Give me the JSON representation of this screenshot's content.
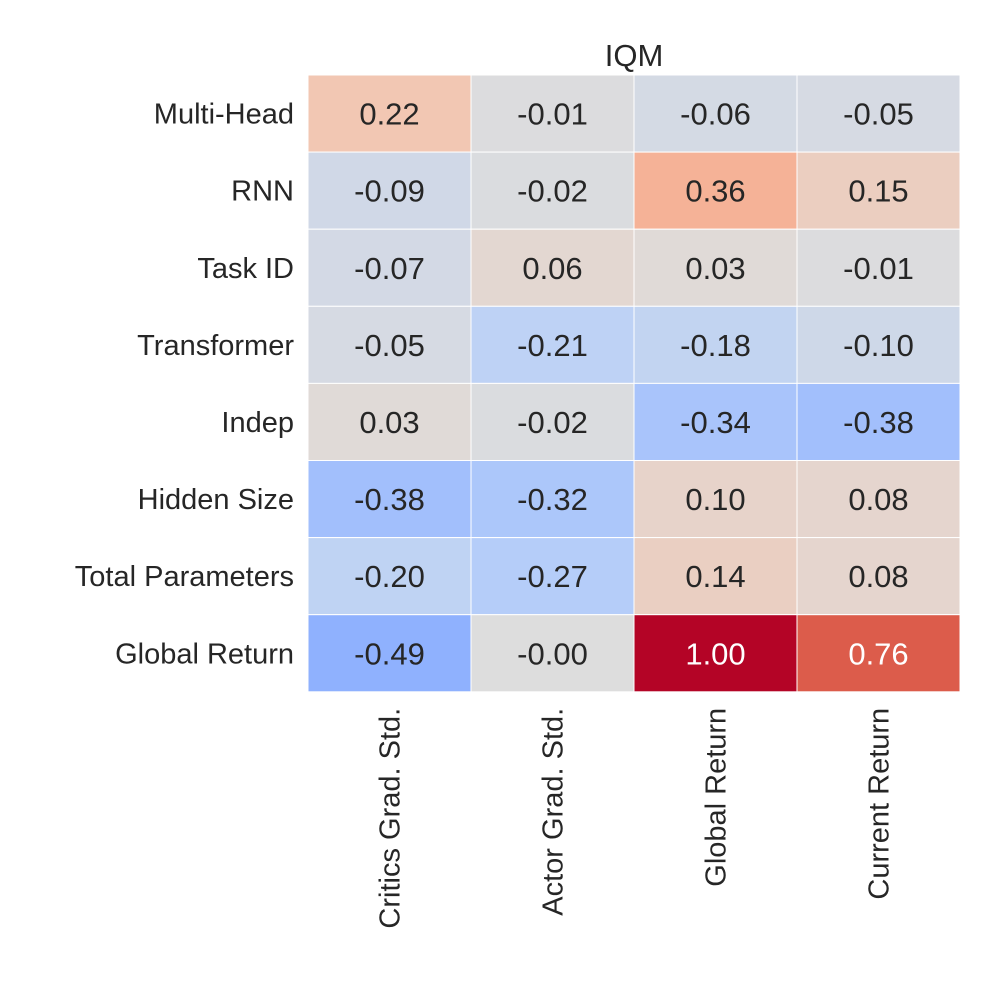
{
  "chart_data": {
    "type": "heatmap",
    "title": "IQM",
    "xlabel": "",
    "ylabel": "",
    "rows": [
      "Multi-Head",
      "RNN",
      "Task ID",
      "Transformer",
      "Indep",
      "Hidden Size",
      "Total Parameters",
      "Global Return"
    ],
    "columns": [
      "Critics Grad. Std.",
      "Actor Grad. Std.",
      "Global Return",
      "Current Return"
    ],
    "values": [
      [
        0.22,
        -0.01,
        -0.06,
        -0.05
      ],
      [
        -0.09,
        -0.02,
        0.36,
        0.15
      ],
      [
        -0.07,
        0.06,
        0.03,
        -0.01
      ],
      [
        -0.05,
        -0.21,
        -0.18,
        -0.1
      ],
      [
        0.03,
        -0.02,
        -0.34,
        -0.38
      ],
      [
        -0.38,
        -0.32,
        0.1,
        0.08
      ],
      [
        -0.2,
        -0.27,
        0.14,
        0.08
      ],
      [
        -0.49,
        -0.0,
        1.0,
        0.76
      ]
    ],
    "labels": [
      [
        "0.22",
        "-0.01",
        "-0.06",
        "-0.05"
      ],
      [
        "-0.09",
        "-0.02",
        "0.36",
        "0.15"
      ],
      [
        "-0.07",
        "0.06",
        "0.03",
        "-0.01"
      ],
      [
        "-0.05",
        "-0.21",
        "-0.18",
        "-0.10"
      ],
      [
        "0.03",
        "-0.02",
        "-0.34",
        "-0.38"
      ],
      [
        "-0.38",
        "-0.32",
        "0.10",
        "0.08"
      ],
      [
        "-0.20",
        "-0.27",
        "0.14",
        "0.08"
      ],
      [
        "-0.49",
        "-0.00",
        "1.00",
        "0.76"
      ]
    ],
    "colormap": "coolwarm",
    "vmin": -1,
    "vmax": 1,
    "colorbar": false,
    "grid": false
  }
}
